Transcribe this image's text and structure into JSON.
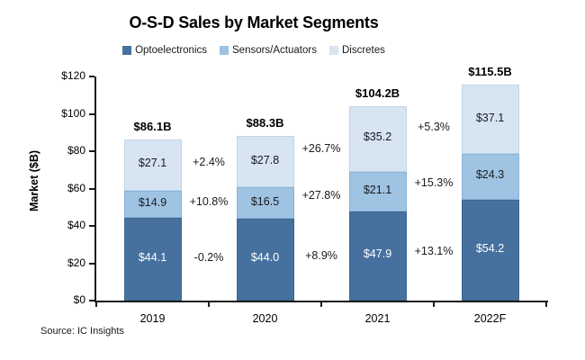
{
  "title": "O-S-D Sales by Market Segments",
  "source": "Source: IC Insights",
  "legend": [
    {
      "label": "Optoelectronics",
      "color": "#46719F"
    },
    {
      "label": "Sensors/Actuators",
      "color": "#9EC3E3"
    },
    {
      "label": "Discretes",
      "color": "#D7E4F2"
    }
  ],
  "y_axis": {
    "title": "Market ($B)",
    "tick_labels": [
      "$0",
      "$20",
      "$40",
      "$60",
      "$80",
      "$100",
      "$120"
    ]
  },
  "x_axis": {
    "labels": [
      "2019",
      "2020",
      "2021",
      "2022F"
    ]
  },
  "chart_data": {
    "type": "bar",
    "stacked": true,
    "title": "O-S-D Sales by Market Segments",
    "xlabel": "",
    "ylabel": "Market ($B)",
    "ylim": [
      0,
      120
    ],
    "ytick_step": 20,
    "grid": false,
    "legend_position": "top",
    "categories": [
      "2019",
      "2020",
      "2021",
      "2022F"
    ],
    "series": [
      {
        "name": "Optoelectronics",
        "color": "#46719F",
        "border_color": "#3D6690",
        "label_color": "#FFFFFF",
        "values": [
          44.1,
          44.0,
          47.9,
          54.2
        ],
        "labels": [
          "$44.1",
          "$44.0",
          "$47.9",
          "$54.2"
        ]
      },
      {
        "name": "Sensors/Actuators",
        "color": "#9EC3E3",
        "border_color": "#8AB3D9",
        "label_color": "#1A1A1A",
        "values": [
          14.9,
          16.5,
          21.1,
          24.3
        ],
        "labels": [
          "$14.9",
          "$16.5",
          "$21.1",
          "$24.3"
        ]
      },
      {
        "name": "Discretes",
        "color": "#D7E4F2",
        "border_color": "#C2D5E9",
        "label_color": "#1A1A1A",
        "values": [
          27.1,
          27.8,
          35.2,
          37.1
        ],
        "labels": [
          "$27.1",
          "$27.8",
          "$35.2",
          "$37.1"
        ]
      }
    ],
    "totals": [
      "$86.1B",
      "$88.3B",
      "$104.2B",
      "$115.5B"
    ],
    "growth": [
      [
        "-0.2%",
        "+10.8%",
        "+2.4%"
      ],
      [
        "+8.9%",
        "+27.8%",
        "+26.7%"
      ],
      [
        "+13.1%",
        "+15.3%",
        "+5.3%"
      ]
    ],
    "growth_series_order": [
      "Optoelectronics",
      "Sensors/Actuators",
      "Discretes"
    ]
  }
}
